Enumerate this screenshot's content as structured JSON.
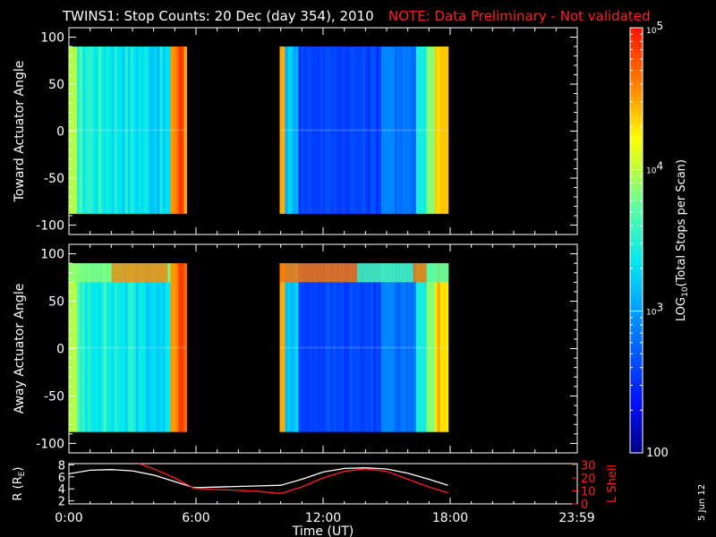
{
  "title": "TWINS1: Stop Counts: 20 Dec (day 354), 2010",
  "note": "NOTE: Data Preliminary - Not validated",
  "date_stamp": "5 Jun 12",
  "colorbar": {
    "label": "LOG10(Total Stops per Scan)",
    "label_prefix": "LOG",
    "label_sub": "10",
    "label_suffix": "(Total Stops per Scan)",
    "ticks": [
      {
        "label": "10",
        "exp": "5",
        "value": 100000
      },
      {
        "label": "10",
        "exp": "4",
        "value": 10000
      },
      {
        "label": "10",
        "exp": "3",
        "value": 1000
      },
      {
        "label": "100",
        "exp": "",
        "value": 100
      }
    ]
  },
  "colors": {
    "red": "#ff2020",
    "white": "#ffffff",
    "background": "#000000"
  },
  "chart_data": [
    {
      "type": "heatmap",
      "ylabel": "Toward Actuator Angle",
      "ylim": [
        -110,
        110
      ],
      "yticks": [
        100,
        50,
        0,
        -50,
        -100
      ],
      "xlim": [
        0,
        24
      ],
      "data_blocks": [
        {
          "t_start": 0.0,
          "t_end": 5.55,
          "angle_min": -88,
          "angle_max": 90
        },
        {
          "t_start": 9.95,
          "t_end": 17.9,
          "angle_min": -88,
          "angle_max": 90
        }
      ],
      "tick_labels_shown": true
    },
    {
      "type": "heatmap",
      "ylabel": "Away Actuator Angle",
      "ylim": [
        -110,
        110
      ],
      "yticks": [
        100,
        50,
        0,
        -50,
        -100
      ],
      "xlim": [
        0,
        24
      ],
      "data_blocks": [
        {
          "t_start": 0.0,
          "t_end": 5.55,
          "angle_min": -88,
          "angle_max": 90
        },
        {
          "t_start": 9.95,
          "t_end": 17.9,
          "angle_min": -88,
          "angle_max": 90
        }
      ],
      "tick_labels_shown": true
    },
    {
      "type": "line",
      "ylabel_left": "R (RE)",
      "ylabel_left_prefix": "R (R",
      "ylabel_left_sub": "E",
      "ylabel_left_suffix": ")",
      "ylabel_right": "L Shell",
      "xlabel": "Time (UT)",
      "xlim": [
        0,
        24
      ],
      "x_tick_labels": [
        "0:00",
        "6:00",
        "12:00",
        "18:00",
        "23:59"
      ],
      "x_tick_values": [
        0,
        6,
        12,
        18,
        23.98
      ],
      "left_ylim": [
        1.5,
        8.2
      ],
      "left_yticks": [
        "8",
        "6",
        "4",
        "2"
      ],
      "left_ytick_values": [
        8,
        6,
        4,
        2
      ],
      "right_ylim": [
        0,
        31
      ],
      "right_yticks": [
        "30",
        "20",
        "10",
        "0"
      ],
      "right_ytick_values": [
        30,
        20,
        10,
        0
      ],
      "series": [
        {
          "name": "R",
          "color": "#ffffff",
          "axis": "left",
          "x": [
            0,
            1,
            2,
            3,
            4,
            5,
            5.9,
            7,
            8,
            9,
            10,
            11,
            12,
            13,
            14,
            15,
            16,
            17,
            17.9
          ],
          "y": [
            6.5,
            7.1,
            7.2,
            7.0,
            6.3,
            5.2,
            4.2,
            4.3,
            4.4,
            4.5,
            4.6,
            5.6,
            6.8,
            7.4,
            7.5,
            7.3,
            6.6,
            5.6,
            4.6
          ]
        },
        {
          "name": "L Shell",
          "color": "#ff2020",
          "axis": "right",
          "x": [
            3.3,
            4,
            5,
            5.9,
            7,
            8,
            9,
            10,
            11,
            12,
            13,
            14,
            15,
            16,
            17,
            17.9
          ],
          "y": [
            31,
            27,
            20,
            12,
            11,
            10.5,
            9.5,
            8,
            13,
            20,
            25,
            27,
            25,
            19,
            13,
            8.5
          ]
        }
      ]
    }
  ]
}
